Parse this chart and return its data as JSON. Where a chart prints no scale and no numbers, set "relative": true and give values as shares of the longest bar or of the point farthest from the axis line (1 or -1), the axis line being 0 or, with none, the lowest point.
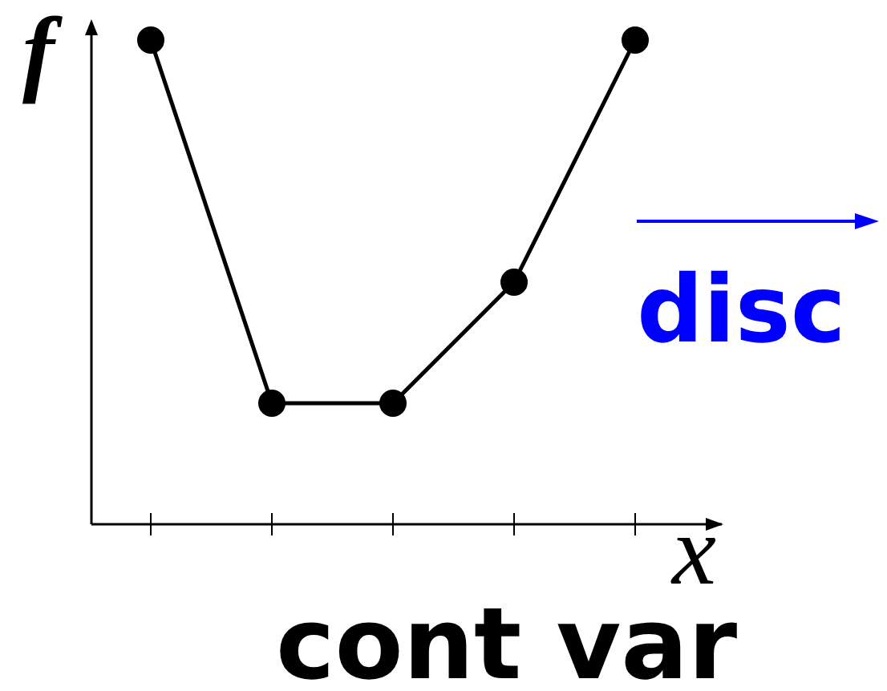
{
  "chart_data": {
    "type": "line",
    "xlabel": "x",
    "ylabel": "f",
    "annotations": [
      "cont var",
      "disc"
    ],
    "categories": [
      null,
      null,
      null,
      null,
      null
    ],
    "relative": true,
    "marker": "circle",
    "line_style": "solid",
    "series": [
      {
        "color": "#000000",
        "values": [
          1,
          0.25,
          0.25,
          0.5,
          1
        ]
      }
    ]
  }
}
